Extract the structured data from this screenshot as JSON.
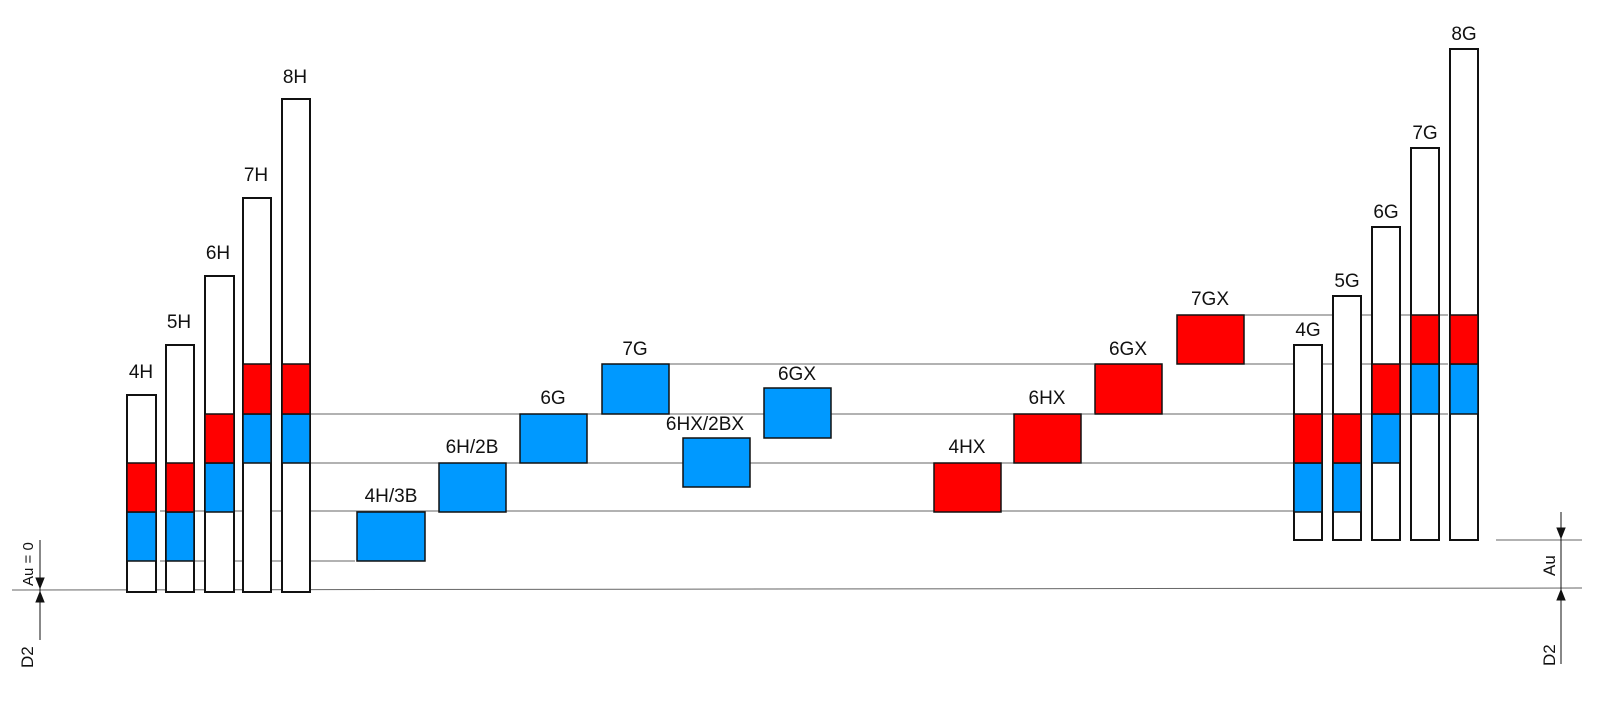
{
  "colors": {
    "red": "#ff0000",
    "blue": "#0099ff",
    "outline": "#111111",
    "line": "#555555"
  },
  "left_group": {
    "labels": [
      "4H",
      "5H",
      "6H",
      "7H",
      "8H"
    ],
    "segments": [
      [
        "white",
        "blue",
        "red",
        "white"
      ],
      [
        "white",
        "blue",
        "red",
        "white"
      ],
      [
        "white",
        "blue",
        "red",
        "white"
      ],
      [
        "white",
        "blue",
        "red",
        "white"
      ],
      [
        "white",
        "blue",
        "red",
        "white"
      ]
    ]
  },
  "middle_group": {
    "labels": [
      "4H/3B",
      "6H/2B",
      "6G",
      "7G",
      "6HX/2BX",
      "6GX",
      "4HX",
      "6HX",
      "6GX",
      "7GX"
    ],
    "fills": [
      "blue",
      "blue",
      "blue",
      "blue",
      "blue",
      "blue",
      "red",
      "red",
      "red",
      "red"
    ]
  },
  "right_group": {
    "labels": [
      "4G",
      "5G",
      "6G",
      "7G",
      "8G"
    ],
    "segments": [
      [
        "white",
        "blue",
        "red",
        "white"
      ],
      [
        "white",
        "blue",
        "red",
        "white"
      ],
      [
        "white",
        "blue",
        "red",
        "white"
      ],
      [
        "white",
        "blue",
        "red",
        "white"
      ],
      [
        "white",
        "blue",
        "red",
        "white"
      ]
    ]
  },
  "dimension_labels": {
    "left_top": "Au = 0",
    "left_bottom": "D2",
    "right_top": "Au",
    "right_bottom": "D2"
  }
}
